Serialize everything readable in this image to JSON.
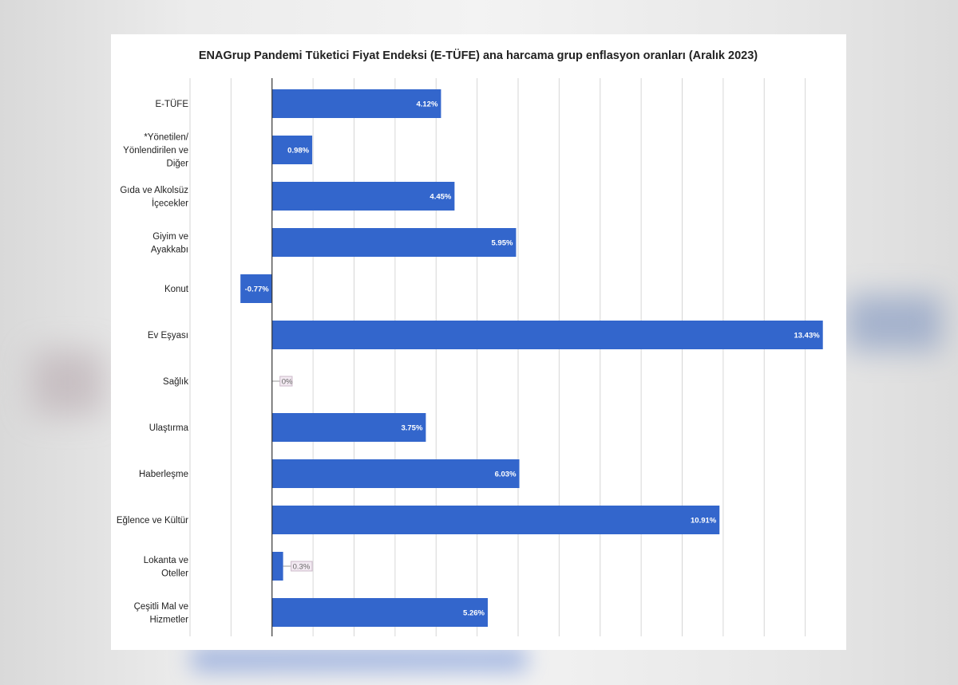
{
  "chart_data": {
    "type": "bar",
    "orientation": "horizontal",
    "title": "ENAGrup Pandemi Tüketici Fiyat Endeksi (E-TÜFE) ana harcama grup enflasyon oranları (Aralık 2023)",
    "categories": [
      "E-TÜFE",
      "*Yönetilen/\nYönlendirilen ve\nDiğer",
      "Gıda ve Alkolsüz\nİçecekler",
      "Giyim ve\nAyakkabı",
      "Konut",
      "Ev Eşyası",
      "Sağlık",
      "Ulaştırma",
      "Haberleşme",
      "Eğlence ve Kültür",
      "Lokanta ve\nOteller",
      "Çeşitli Mal ve\nHizmetler"
    ],
    "values": [
      4.12,
      0.98,
      4.45,
      5.95,
      -0.77,
      13.43,
      0,
      3.75,
      6.03,
      10.91,
      0.27,
      5.26
    ],
    "data_labels": [
      "4.12%",
      "0.98%",
      "4.45%",
      "5.95%",
      "-0.77%",
      "13.43%",
      "0%",
      "3.75%",
      "6.03%",
      "10.91%",
      "0.3%",
      "5.26%"
    ],
    "xlim": [
      -2,
      14
    ],
    "grid": true,
    "xlabel": "",
    "ylabel": "",
    "bar_color": "#3366cc"
  }
}
